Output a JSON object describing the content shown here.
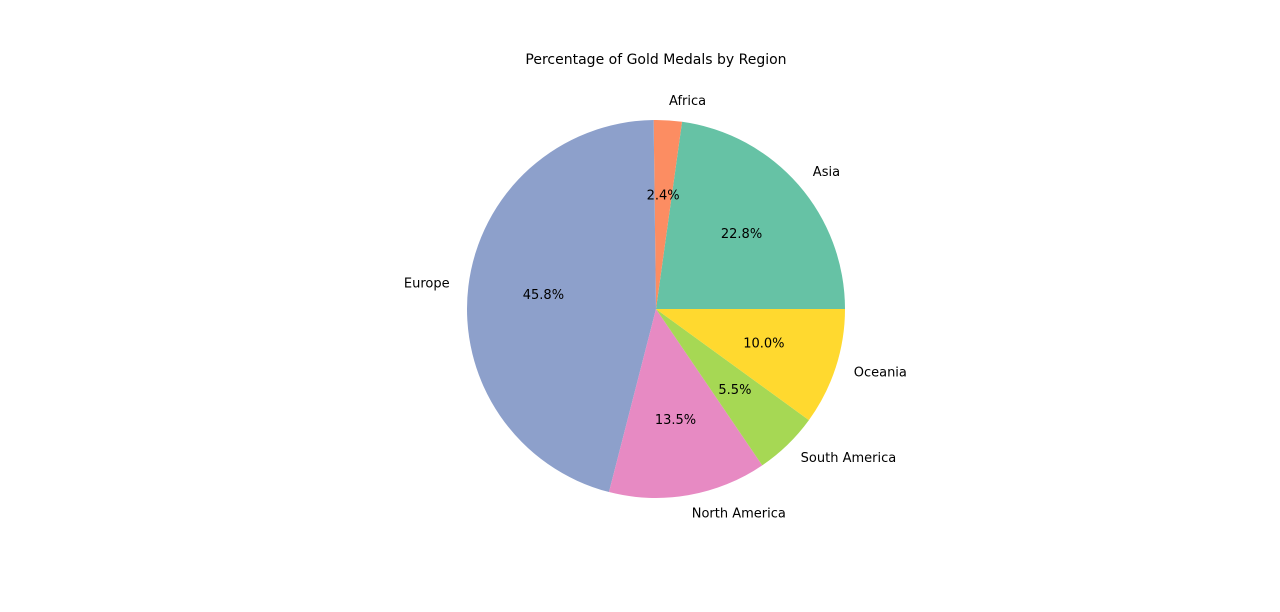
{
  "chart_data": {
    "type": "pie",
    "title": "Percentage of Gold Medals by Region",
    "start_angle_deg": 0,
    "direction": "counterclockwise",
    "slices": [
      {
        "label": "Asia",
        "value": 22.8,
        "pct_label": "22.8%",
        "color": "#66c2a5"
      },
      {
        "label": "Africa",
        "value": 2.4,
        "pct_label": "2.4%",
        "color": "#fc8d62"
      },
      {
        "label": "Europe",
        "value": 45.8,
        "pct_label": "45.8%",
        "color": "#8da0cb"
      },
      {
        "label": "North America",
        "value": 13.5,
        "pct_label": "13.5%",
        "color": "#e78ac3"
      },
      {
        "label": "South America",
        "value": 5.5,
        "pct_label": "5.5%",
        "color": "#a6d854"
      },
      {
        "label": "Oceania",
        "value": 10.0,
        "pct_label": "10.0%",
        "color": "#ffd92f"
      }
    ]
  }
}
